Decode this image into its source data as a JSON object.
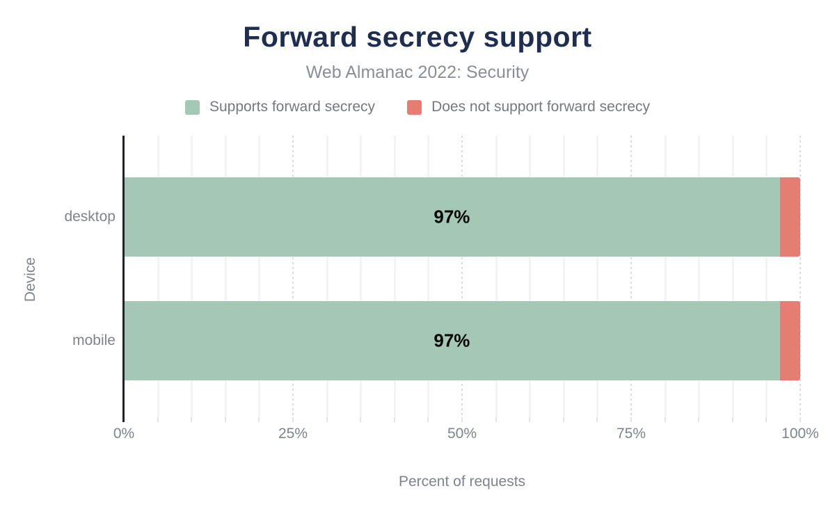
{
  "title": "Forward secrecy support",
  "subtitle": "Web Almanac 2022: Security",
  "colors": {
    "title": "#1e2d50",
    "supports_green": "#a4c8b5",
    "not_supports_red": "#e57d73",
    "axis_text": "#7e838c",
    "bar_label_text": "#060606"
  },
  "legend": [
    {
      "label": "Supports forward secrecy",
      "color": "#a4c8b5"
    },
    {
      "label": "Does not support forward secrecy",
      "color": "#e57d73"
    }
  ],
  "chart_data": {
    "type": "bar",
    "orientation": "horizontal",
    "stacked": true,
    "title": "Forward secrecy support",
    "subtitle": "Web Almanac 2022: Security",
    "categories": [
      "desktop",
      "mobile"
    ],
    "series": [
      {
        "name": "Supports forward secrecy",
        "color": "#a4c8b5",
        "values": [
          97,
          97
        ]
      },
      {
        "name": "Does not support forward secrecy",
        "color": "#e57d73",
        "values": [
          3,
          3
        ]
      }
    ],
    "bar_labels": [
      "97%",
      "97%"
    ],
    "xlabel": "Percent of requests",
    "ylabel": "Device",
    "xlim": [
      0,
      100
    ],
    "x_ticks": [
      {
        "value": 0,
        "label": "0%"
      },
      {
        "value": 25,
        "label": "25%"
      },
      {
        "value": 50,
        "label": "50%"
      },
      {
        "value": 75,
        "label": "75%"
      },
      {
        "value": 100,
        "label": "100%"
      }
    ],
    "grid": {
      "minor_step": 5,
      "major_step": 25,
      "minor_style": "solid",
      "major_style": "dotted"
    },
    "legend_position": "top"
  }
}
